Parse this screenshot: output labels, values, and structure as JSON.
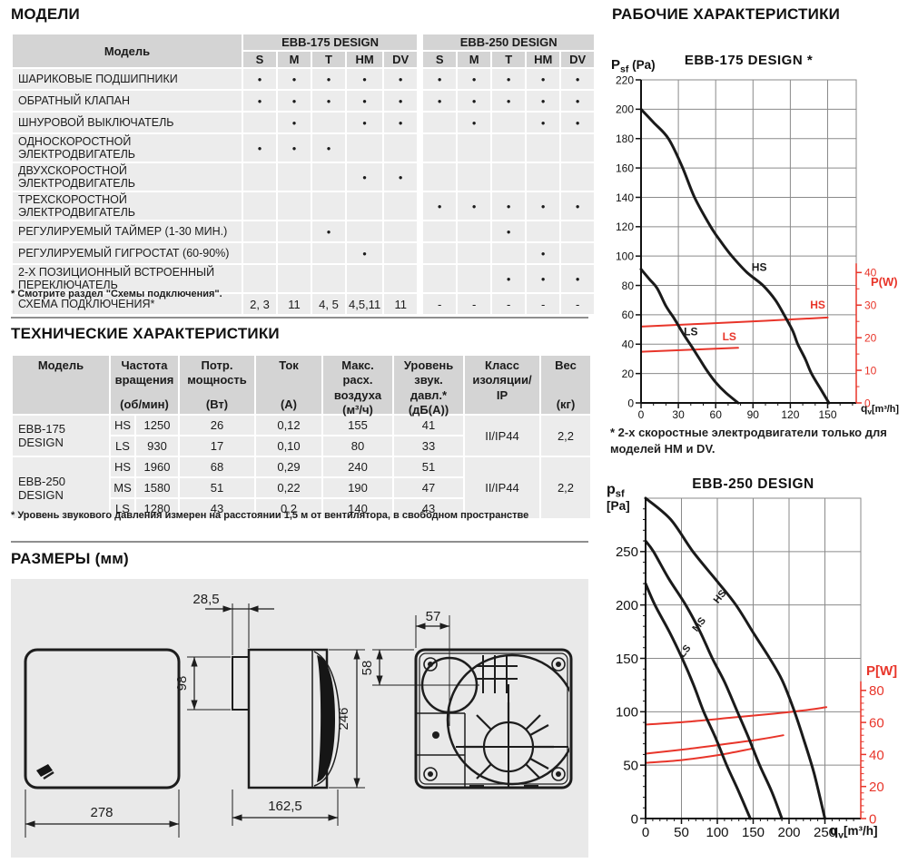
{
  "page": {
    "section_models": "МОДЕЛИ",
    "section_tech": "ТЕХНИЧЕСКИЕ ХАРАКТЕРИСТИКИ",
    "section_dimensions": "РАЗМЕРЫ (мм)",
    "section_performance": "РАБОЧИЕ ХАРАКТЕРИСТИКИ"
  },
  "colors": {
    "accent_red": "#e8352a",
    "table_header_bg": "#d4d4d4",
    "table_row_bg": "#ececec",
    "drawing_bg": "#e9e9e9",
    "grid_gray": "#8a8a8a",
    "curve_black": "#1a1a1a"
  },
  "models_table": {
    "corner_label": "Модель",
    "groups": [
      "EBB-175 DESIGN",
      "EBB-250 DESIGN"
    ],
    "speed_columns": [
      "S",
      "M",
      "T",
      "HM",
      "DV"
    ],
    "rows": [
      {
        "label": "ШАРИКОВЫЕ ПОДШИПНИКИ",
        "cells": [
          "●",
          "●",
          "●",
          "●",
          "●",
          "●",
          "●",
          "●",
          "●",
          "●"
        ]
      },
      {
        "label": "ОБРАТНЫЙ КЛАПАН",
        "cells": [
          "●",
          "●",
          "●",
          "●",
          "●",
          "●",
          "●",
          "●",
          "●",
          "●"
        ]
      },
      {
        "label": "ШНУРОВОЙ ВЫКЛЮЧАТЕЛЬ",
        "cells": [
          "",
          "●",
          "",
          "●",
          "●",
          "",
          "●",
          "",
          "●",
          "●"
        ]
      },
      {
        "label": "ОДНОСКОРОСТНОЙ ЭЛЕКТРОДВИГАТЕЛЬ",
        "cells": [
          "●",
          "●",
          "●",
          "",
          "",
          "",
          "",
          "",
          "",
          ""
        ]
      },
      {
        "label": "ДВУХСКОРОСТНОЙ ЭЛЕКТРОДВИГАТЕЛЬ",
        "cells": [
          "",
          "",
          "",
          "●",
          "●",
          "",
          "",
          "",
          "",
          ""
        ]
      },
      {
        "label": "ТРЕХСКОРОСТНОЙ ЭЛЕКТРОДВИГАТЕЛЬ",
        "cells": [
          "",
          "",
          "",
          "",
          "",
          "●",
          "●",
          "●",
          "●",
          "●"
        ]
      },
      {
        "label": "РЕГУЛИРУЕМЫЙ ТАЙМЕР (1-30 МИН.)",
        "cells": [
          "",
          "",
          "●",
          "",
          "",
          "",
          "",
          "●",
          "",
          ""
        ]
      },
      {
        "label": "РЕГУЛИРУЕМЫЙ ГИГРОСТАТ (60-90%)",
        "cells": [
          "",
          "",
          "",
          "●",
          "",
          "",
          "",
          "",
          "●",
          ""
        ]
      },
      {
        "label": "2-Х ПОЗИЦИОННЫЙ ВСТРОЕННЫЙ ПЕРЕКЛЮЧАТЕЛЬ",
        "cells": [
          "",
          "",
          "",
          "",
          "",
          "",
          "",
          "●",
          "●",
          "●"
        ]
      },
      {
        "label": "СХЕМА ПОДКЛЮЧЕНИЯ*",
        "cells": [
          "2, 3",
          "11",
          "4, 5",
          "4,5,11",
          "11",
          "-",
          "-",
          "-",
          "-",
          "-"
        ]
      }
    ],
    "footnote": "* Смотрите раздел \"Схемы подключения\"."
  },
  "tech_table": {
    "columns": [
      {
        "title": "Модель",
        "unit": ""
      },
      {
        "title": "Частота\nвращения",
        "unit": "(об/мин)"
      },
      {
        "title": "Потр.\nмощность",
        "unit": "(Вт)"
      },
      {
        "title": "Ток",
        "unit": "(А)"
      },
      {
        "title": "Макс.\nрасх.\nвоздуха",
        "unit": "(м³/ч)"
      },
      {
        "title": "Уровень\nзвук.\nдавл.*",
        "unit": "(дБ(А))"
      },
      {
        "title": "Класс\nизоляции/\nIP",
        "unit": ""
      },
      {
        "title": "Вес",
        "unit": "(кг)"
      }
    ],
    "groups": [
      {
        "model": "EBB-175 DESIGN",
        "insulation_class": "II/IP44",
        "weight": "2,2",
        "speeds": [
          {
            "speed": "HS",
            "rpm": "1250",
            "power_w": "26",
            "current_a": "0,12",
            "max_airflow": "155",
            "noise_db": "41"
          },
          {
            "speed": "LS",
            "rpm": "930",
            "power_w": "17",
            "current_a": "0,10",
            "max_airflow": "80",
            "noise_db": "33"
          }
        ]
      },
      {
        "model": "EBB-250 DESIGN",
        "insulation_class": "II/IP44",
        "weight": "2,2",
        "speeds": [
          {
            "speed": "HS",
            "rpm": "1960",
            "power_w": "68",
            "current_a": "0,29",
            "max_airflow": "240",
            "noise_db": "51"
          },
          {
            "speed": "MS",
            "rpm": "1580",
            "power_w": "51",
            "current_a": "0,22",
            "max_airflow": "190",
            "noise_db": "47"
          },
          {
            "speed": "LS",
            "rpm": "1280",
            "power_w": "43",
            "current_a": "0,2",
            "max_airflow": "140",
            "noise_db": "43"
          }
        ]
      }
    ],
    "footnote": "* Уровень звукового давления измерен на расстоянии 1,5 м от вентилятора, в свободном пространстве"
  },
  "dimensions": {
    "front_width": "278",
    "duct_length": "28,5",
    "duct_diameter": "98",
    "total_height": "246",
    "body_depth": "162,5",
    "outlet_offset_x": "57",
    "outlet_offset_y": "58"
  },
  "chart_data": [
    {
      "type": "line",
      "title": "EBB-175 DESIGN *",
      "x_axis": {
        "label_main": "q",
        "label_sub": "v",
        "label_unit": "[m³/h]",
        "min": 0,
        "max": 173,
        "ticks": [
          0,
          30,
          60,
          90,
          120,
          150
        ],
        "grid_step": 30,
        "minor_step": 10
      },
      "y_axis": {
        "label_main": "P",
        "label_sub": "sf",
        "label_unit": " (Pa)",
        "min": 0,
        "max": 220,
        "ticks": [
          0,
          20,
          40,
          60,
          80,
          100,
          120,
          140,
          160,
          180,
          200,
          220
        ],
        "grid_step": 20
      },
      "y2_axis": {
        "label": "P(W)",
        "ticks": [
          0,
          10,
          20,
          30,
          40
        ],
        "minor_step": 5,
        "pa_per_watt": 2.22
      },
      "series": [
        {
          "name": "HS",
          "quantity": "static-pressure",
          "axis": "y",
          "color": "#1a1a1a",
          "points": [
            [
              0,
              200
            ],
            [
              10,
              191
            ],
            [
              22,
              180
            ],
            [
              33,
              161
            ],
            [
              43,
              140
            ],
            [
              56,
              120
            ],
            [
              64,
              110
            ],
            [
              73,
              100
            ],
            [
              85,
              89
            ],
            [
              98,
              80
            ],
            [
              108,
              70
            ],
            [
              115,
              60
            ],
            [
              122,
              49
            ],
            [
              126,
              40
            ],
            [
              132,
              30
            ],
            [
              137,
              20
            ],
            [
              144,
              10
            ],
            [
              151,
              0
            ]
          ],
          "label_at": [
            95,
            90
          ],
          "label_rotate": 0
        },
        {
          "name": "LS",
          "quantity": "static-pressure",
          "axis": "y",
          "color": "#1a1a1a",
          "points": [
            [
              0,
              91
            ],
            [
              7,
              84
            ],
            [
              13,
              78
            ],
            [
              20,
              66
            ],
            [
              27,
              57
            ],
            [
              34,
              47
            ],
            [
              41,
              38
            ],
            [
              47,
              30
            ],
            [
              53,
              22
            ],
            [
              60,
              14
            ],
            [
              68,
              7
            ],
            [
              78,
              0
            ]
          ],
          "label_at": [
            40,
            46
          ],
          "label_rotate": 0
        },
        {
          "name": "HS",
          "quantity": "power",
          "axis": "y2",
          "color": "#e8352a",
          "points": [
            [
              0,
              23.4
            ],
            [
              50,
              24.3
            ],
            [
              100,
              25.2
            ],
            [
              150,
              26.2
            ]
          ],
          "label_at": [
            142,
            29
          ],
          "label_rotate": 0
        },
        {
          "name": "LS",
          "quantity": "power",
          "axis": "y2",
          "color": "#e8352a",
          "points": [
            [
              0,
              15.7
            ],
            [
              40,
              16.3
            ],
            [
              78,
              16.9
            ]
          ],
          "label_at": [
            71,
            19.2
          ],
          "label_rotate": 0
        }
      ],
      "footnote": "* 2-х скоростные электродвигатели только для моделей HM и DV."
    },
    {
      "type": "line",
      "title": "EBB-250 DESIGN",
      "x_axis": {
        "label_main": "q",
        "label_sub": "v",
        "label_unit": "[m³/h]",
        "min": 0,
        "max": 300,
        "ticks": [
          0,
          50,
          100,
          150,
          200,
          250
        ],
        "grid_step": 50,
        "minor_step": 10
      },
      "y_axis": {
        "label_main": "p",
        "label_sub": "sf",
        "label_unit": "[Pa]",
        "min": 0,
        "max": 300,
        "ticks": [
          0,
          50,
          100,
          150,
          200,
          250
        ],
        "grid_step": 50,
        "minor_step": 10
      },
      "y2_axis": {
        "label": "P[W]",
        "ticks": [
          0,
          20,
          40,
          60,
          80
        ],
        "minor_step": 4,
        "pa_per_watt": 1.5
      },
      "series": [
        {
          "name": "HS",
          "quantity": "static-pressure",
          "axis": "y",
          "color": "#1a1a1a",
          "points": [
            [
              0,
              300
            ],
            [
              35,
              280
            ],
            [
              66,
              250
            ],
            [
              100,
              222
            ],
            [
              126,
              200
            ],
            [
              152,
              172
            ],
            [
              173,
              150
            ],
            [
              190,
              130
            ],
            [
              205,
              105
            ],
            [
              220,
              75
            ],
            [
              235,
              42
            ],
            [
              250,
              0
            ]
          ],
          "label_at": [
            107,
            206
          ],
          "label_rotate": -52
        },
        {
          "name": "MS",
          "quantity": "static-pressure",
          "axis": "y",
          "color": "#1a1a1a",
          "points": [
            [
              0,
              260
            ],
            [
              11,
              250
            ],
            [
              32,
              225
            ],
            [
              56,
              200
            ],
            [
              76,
              175
            ],
            [
              93,
              150
            ],
            [
              110,
              128
            ],
            [
              128,
              100
            ],
            [
              144,
              75
            ],
            [
              159,
              50
            ],
            [
              176,
              25
            ],
            [
              190,
              0
            ]
          ],
          "label_at": [
            78,
            180
          ],
          "label_rotate": -52
        },
        {
          "name": "LS",
          "quantity": "static-pressure",
          "axis": "y",
          "color": "#1a1a1a",
          "points": [
            [
              0,
              220
            ],
            [
              13,
              200
            ],
            [
              33,
              175
            ],
            [
              51,
              150
            ],
            [
              67,
              125
            ],
            [
              81,
              100
            ],
            [
              98,
              75
            ],
            [
              113,
              50
            ],
            [
              130,
              25
            ],
            [
              146,
              0
            ]
          ],
          "label_at": [
            58,
            155
          ],
          "label_rotate": -52
        },
        {
          "name": "",
          "quantity": "power",
          "axis": "y2",
          "color": "#e8352a",
          "points": [
            [
              0,
              58.7
            ],
            [
              60,
              60.5
            ],
            [
              120,
              63
            ],
            [
              180,
              65.5
            ],
            [
              220,
              67.5
            ],
            [
              252,
              69.5
            ]
          ]
        },
        {
          "name": "",
          "quantity": "power",
          "axis": "y2",
          "color": "#e8352a",
          "points": [
            [
              0,
              40.5
            ],
            [
              60,
              43.5
            ],
            [
              120,
              47
            ],
            [
              160,
              49.5
            ],
            [
              192,
              52
            ]
          ]
        },
        {
          "name": "",
          "quantity": "power",
          "axis": "y2",
          "color": "#e8352a",
          "points": [
            [
              0,
              34.8
            ],
            [
              50,
              36.5
            ],
            [
              100,
              39.5
            ],
            [
              147,
              43.5
            ]
          ]
        }
      ],
      "footnote": ""
    }
  ]
}
